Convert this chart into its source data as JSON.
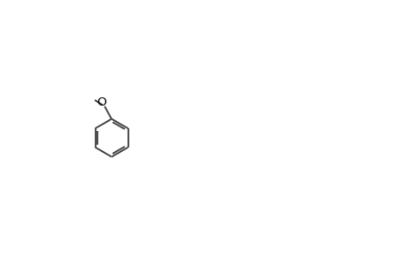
{
  "bg_color": "#ffffff",
  "bond_color": "#4a4a4a",
  "line_width": 1.4,
  "fig_width": 4.6,
  "fig_height": 3.0,
  "dpi": 100
}
